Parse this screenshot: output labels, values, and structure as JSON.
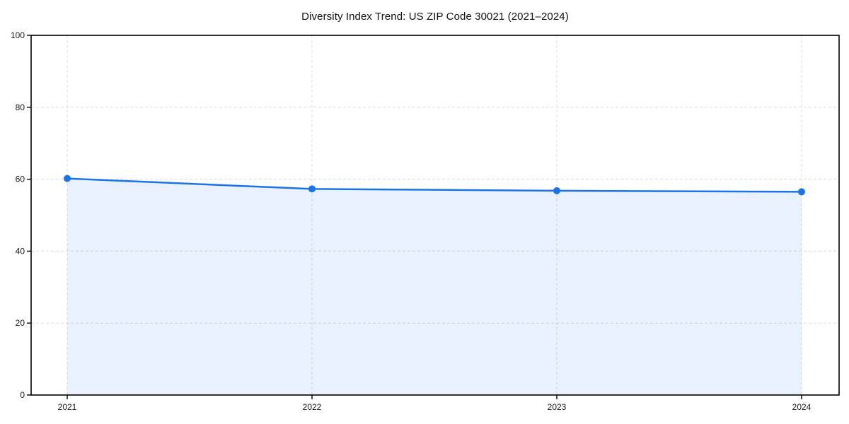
{
  "chart_data": {
    "type": "line",
    "title": "Diversity Index Trend: US ZIP Code 30021 (2021–2024)",
    "categories": [
      "2021",
      "2022",
      "2023",
      "2024"
    ],
    "series": [
      {
        "name": "Diversity Index",
        "values": [
          60.2,
          57.3,
          56.8,
          56.5
        ]
      }
    ],
    "xlabel": "",
    "ylabel": "",
    "ylim": [
      0,
      100
    ],
    "yticks": [
      0,
      20,
      40,
      60,
      80,
      100
    ],
    "grid": "dashed-both-axes",
    "legend": "none",
    "area_fill": true,
    "marker": "circle",
    "colors": {
      "line": "#1a73e8",
      "marker": "#1a73e8",
      "area_fill_rgba": "rgba(26,115,232,0.10)",
      "grid": "#dcdcdc",
      "spine": "#000000",
      "tick_label": "#1a1a1a",
      "title": "#111111",
      "background": "#ffffff"
    }
  }
}
